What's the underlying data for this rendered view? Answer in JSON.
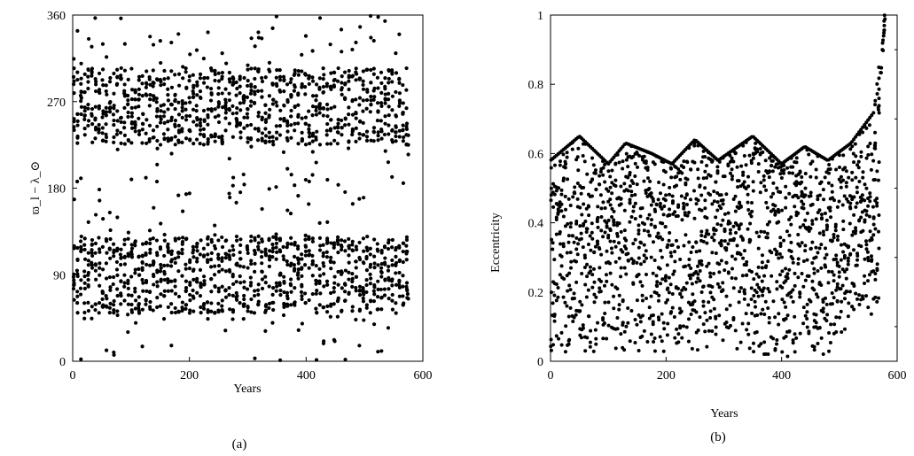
{
  "chart_data": [
    {
      "type": "scatter",
      "panel_label": "(a)",
      "xlabel": "Years",
      "ylabel": "ϖ_l − λ_⊙",
      "xlim": [
        0,
        600
      ],
      "ylim": [
        0,
        360
      ],
      "xticks": [
        0,
        200,
        400,
        600
      ],
      "yticks": [
        0,
        90,
        180,
        270,
        360
      ],
      "xtick_labels": [
        "0",
        "200",
        "400",
        "600"
      ],
      "ytick_labels": [
        "0",
        "90",
        "180",
        "270",
        "360"
      ],
      "grid": false,
      "series": [
        {
          "x_range": [
            0,
            578
          ],
          "bands": [
            {
              "center": 265,
              "half_width": 40,
              "density": "high"
            },
            {
              "center": 90,
              "half_width": 40,
              "density": "high"
            },
            {
              "center": 180,
              "half_width": 180,
              "density": "low"
            }
          ],
          "final_points": [
            {
              "x": 575,
              "y": 235
            },
            {
              "x": 575,
              "y": 225
            },
            {
              "x": 575,
              "y": 215
            },
            {
              "x": 574,
              "y": 70
            },
            {
              "x": 575,
              "y": 65
            }
          ]
        }
      ]
    },
    {
      "type": "scatter",
      "panel_label": "(b)",
      "xlabel": "Years",
      "ylabel": "Eccentricity",
      "xlim": [
        0,
        600
      ],
      "ylim": [
        0,
        1
      ],
      "xticks": [
        0,
        200,
        400,
        600
      ],
      "yticks": [
        0,
        0.2,
        0.4,
        0.6,
        0.8,
        1
      ],
      "xtick_labels": [
        "0",
        "200",
        "400",
        "600"
      ],
      "ytick_labels": [
        "0",
        "0.2",
        "0.4",
        "0.6",
        "0.8",
        "1"
      ],
      "grid": false,
      "series": [
        {
          "x_range": [
            0,
            578
          ],
          "upper_envelope": [
            {
              "x": 0,
              "y": 0.58
            },
            {
              "x": 50,
              "y": 0.65
            },
            {
              "x": 100,
              "y": 0.57
            },
            {
              "x": 130,
              "y": 0.63
            },
            {
              "x": 175,
              "y": 0.6
            },
            {
              "x": 210,
              "y": 0.57
            },
            {
              "x": 250,
              "y": 0.64
            },
            {
              "x": 290,
              "y": 0.58
            },
            {
              "x": 350,
              "y": 0.65
            },
            {
              "x": 400,
              "y": 0.57
            },
            {
              "x": 440,
              "y": 0.62
            },
            {
              "x": 480,
              "y": 0.58
            },
            {
              "x": 520,
              "y": 0.63
            },
            {
              "x": 560,
              "y": 0.72
            },
            {
              "x": 578,
              "y": 1.0
            }
          ],
          "lower_envelope": [
            {
              "x": 0,
              "y": 0.0
            },
            {
              "x": 100,
              "y": 0.03
            },
            {
              "x": 200,
              "y": 0.02
            },
            {
              "x": 300,
              "y": 0.04
            },
            {
              "x": 380,
              "y": 0.0
            },
            {
              "x": 480,
              "y": 0.01
            },
            {
              "x": 540,
              "y": 0.15
            },
            {
              "x": 570,
              "y": 0.08
            }
          ],
          "final_rise": [
            {
              "x": 562,
              "y": 0.65
            },
            {
              "x": 568,
              "y": 0.75
            },
            {
              "x": 572,
              "y": 0.85
            },
            {
              "x": 575,
              "y": 0.93
            },
            {
              "x": 577,
              "y": 0.98
            },
            {
              "x": 578,
              "y": 1.0
            }
          ]
        }
      ]
    }
  ]
}
